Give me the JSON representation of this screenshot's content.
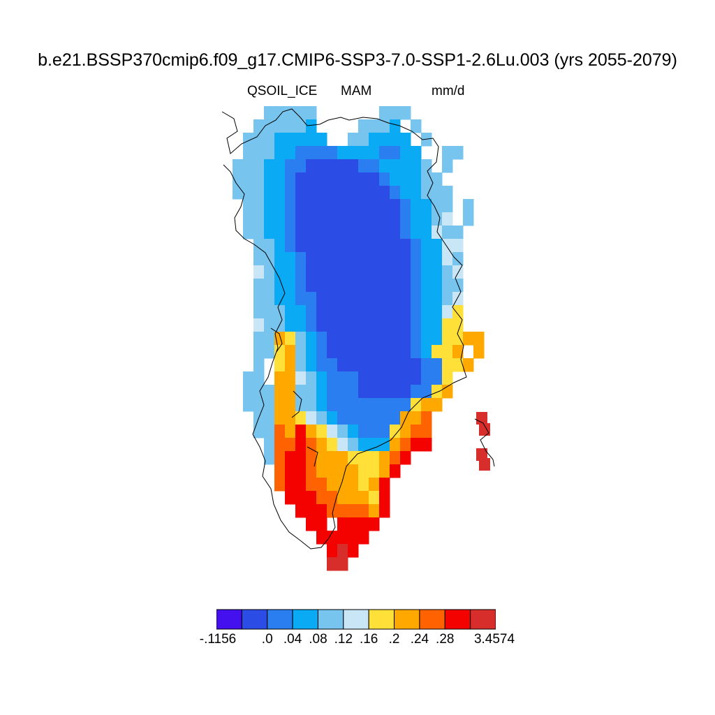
{
  "header": {
    "title": "b.e21.BSSP370cmip6.f09_g17.CMIP6-SSP3-7.0-SSP1-2.6Lu.003 (yrs 2055-2079)",
    "variable": "QSOIL_ICE",
    "season": "MAM",
    "units": "mm/d"
  },
  "colorbar": {
    "colors": [
      "#4411ee",
      "#2b4de6",
      "#2a7ef0",
      "#0aaaf5",
      "#77c4ee",
      "#c8e6f5",
      "#ffe038",
      "#ffa800",
      "#ff6200",
      "#f40200",
      "#d72d2b"
    ],
    "tick_labels": [
      "-.1156",
      ".0",
      ".04",
      ".08",
      ".12",
      ".16",
      ".2",
      ".24",
      ".28",
      "3.4574"
    ]
  },
  "map": {
    "region": "Greenland",
    "legend_level_index_rows": [
      "    44444      444",
      "   444443    4443 4",
      "  44433333  443333 4",
      "  44433222233332233  44",
      " 4443322111112233334 4",
      " 44433211111111233344",
      " 444332111111111233444",
      "  44332111111111123344 4",
      "  44332111111111123345 4",
      "  443321111111111233544",
      "   44321111111111123355",
      "   44332111111111123354",
      "   54332111111111123345",
      "   44332111111111123344",
      "   44332211111111123345",
      "   44433211111111123356",
      "   54433211111111123366",
      "   4476432111111112336677",
      "   44674321111111123667 7",
      "   4 6743221111111122667",
      "  44 77543222111111226",
      "  44477443222111112267",
      "  4447744322222222677",
      "   44776543222222778",
      "   44879765432226788",
      "    4889876543337899",
      "    48998777666789",
      "     899877776679",
      "     89988777679",
      "      9998877769",
      "       999888879",
      "        99 9999",
      "         99999",
      "          9a9",
      "          aa"
    ],
    "island_cells": [
      "a",
      "a",
      "a",
      "a"
    ]
  }
}
